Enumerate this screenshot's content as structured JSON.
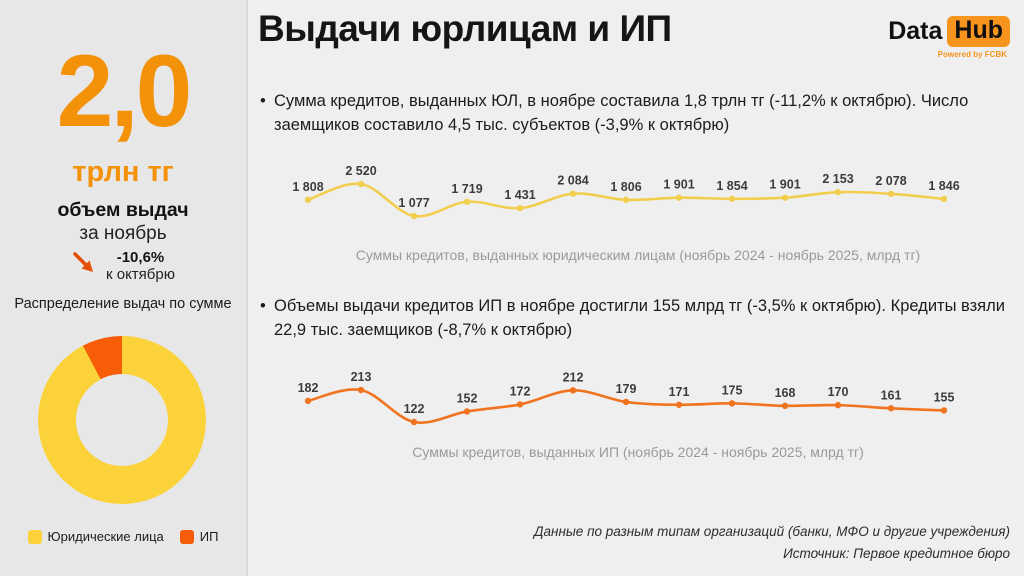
{
  "header": {
    "title": "Выдачи юрлицам и ИП",
    "logo": {
      "part1": "Data",
      "part2": "Hub",
      "tagline": "Powered by FCBK"
    }
  },
  "sidebar": {
    "big_value": "2,0",
    "big_unit": "трлн тг",
    "metric_label": "объем выдач",
    "metric_period": "за ноябрь",
    "delta_value": "-10,6%",
    "delta_period": "к октябрю",
    "donut_title": "Распределение выдач по сумме"
  },
  "main": {
    "bullet1": "Сумма кредитов, выданных ЮЛ, в ноябре составила 1,8 трлн тг (-11,2% к октябрю). Число заемщиков составило 4,5 тыс. субъектов (-3,9% к октябрю)",
    "bullet2": "Объемы выдачи кредитов ИП в ноябре достигли 155 млрд тг (-3,5% к октябрю). Кредиты взяли 22,9 тыс. заемщиков (-8,7% к октябрю)",
    "footnote1": "Данные по разным типам организаций (банки, МФО и другие учреждения)",
    "footnote2": "Источник: Первое кредитное бюро"
  },
  "colors": {
    "accent_orange": "#f39209",
    "logo_orange": "#f7941d",
    "arrow_red_orange": "#e44f08",
    "sidebar_bg": "#e7e7e7",
    "main_bg": "#efefef"
  },
  "chart_data": [
    {
      "type": "line",
      "title": "Суммы кредитов, выданных юридическим лицам (ноябрь 2024 - ноябрь 2025, млрд тг)",
      "period": "ноябрь 2024 - ноябрь 2025",
      "unit": "млрд тг",
      "color": "#f2ce4e",
      "series": [
        {
          "name": "Юридические лица",
          "values": [
            1808,
            2520,
            1077,
            1719,
            1431,
            2084,
            1806,
            1901,
            1854,
            1901,
            2153,
            2078,
            1846
          ]
        }
      ],
      "data_labels": true,
      "axes_visible": false,
      "grid": false
    },
    {
      "type": "line",
      "title": "Суммы кредитов, выданных ИП (ноябрь 2024 - ноябрь 2025, млрд тг)",
      "period": "ноябрь 2024 - ноябрь 2025",
      "unit": "млрд тг",
      "color": "#f0741f",
      "series": [
        {
          "name": "ИП",
          "values": [
            182,
            213,
            122,
            152,
            172,
            212,
            179,
            171,
            175,
            168,
            170,
            161,
            155
          ]
        }
      ],
      "data_labels": true,
      "axes_visible": false,
      "grid": false
    },
    {
      "type": "pie",
      "donut": true,
      "title": "Распределение выдач по сумме",
      "slices": [
        {
          "label": "Юридические лица",
          "value": 92.3,
          "color": "#fbd23a"
        },
        {
          "label": "ИП",
          "value": 7.7,
          "color": "#f75d07"
        }
      ],
      "legend_position": "bottom"
    }
  ]
}
